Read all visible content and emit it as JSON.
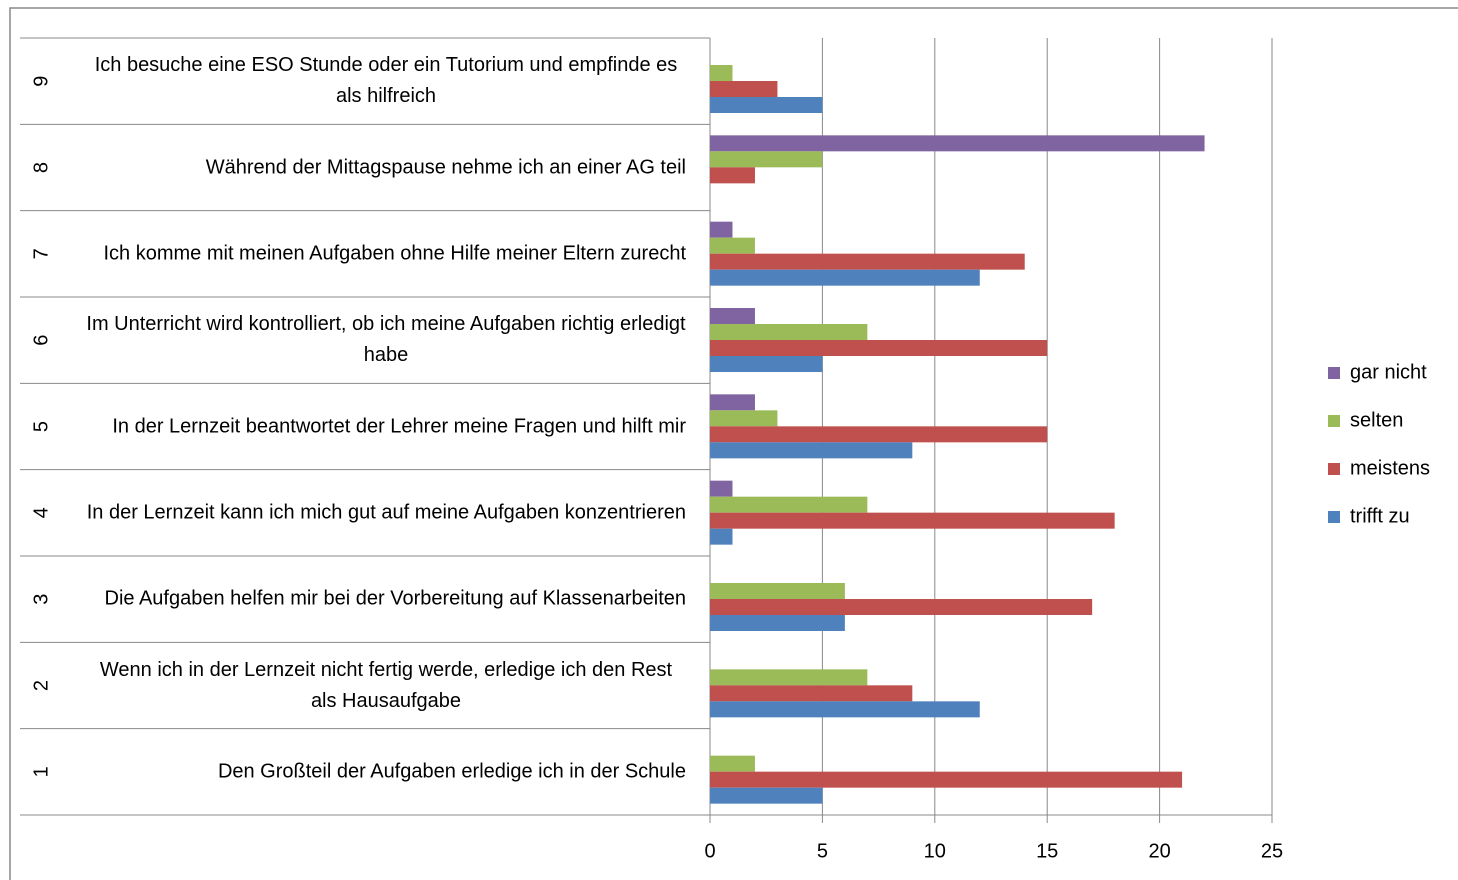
{
  "chart_data": {
    "type": "bar",
    "orientation": "horizontal",
    "category_ids": [
      1,
      2,
      3,
      4,
      5,
      6,
      7,
      8,
      9
    ],
    "categories": [
      "Den Großteil der Aufgaben erledige ich in der Schule",
      "Wenn ich in der Lernzeit nicht fertig werde, erledige ich den Rest als Hausaufgabe",
      "Die Aufgaben helfen mir bei der Vorbereitung auf Klassenarbeiten",
      "In der Lernzeit kann ich mich gut auf meine Aufgaben konzentrieren",
      "In der Lernzeit beantwortet der Lehrer meine Fragen und hilft mir",
      "Im Unterricht wird kontrolliert, ob ich meine Aufgaben richtig erledigt habe",
      "Ich komme mit meinen Aufgaben ohne Hilfe meiner Eltern zurecht",
      "Während der Mittagspause nehme ich an einer AG teil",
      "Ich besuche eine ESO Stunde oder ein Tutorium und empfinde es als hilfreich"
    ],
    "series": [
      {
        "name": "gar nicht",
        "color": "#8064a2",
        "values": [
          null,
          null,
          null,
          1,
          2,
          2,
          1,
          22,
          null
        ]
      },
      {
        "name": "selten",
        "color": "#9bbb59",
        "values": [
          2,
          7,
          6,
          7,
          3,
          7,
          2,
          5,
          1
        ]
      },
      {
        "name": "meistens",
        "color": "#c0504d",
        "values": [
          21,
          9,
          17,
          18,
          15,
          15,
          14,
          2,
          3
        ]
      },
      {
        "name": "trifft zu",
        "color": "#4f81bd",
        "values": [
          5,
          12,
          6,
          1,
          9,
          5,
          12,
          null,
          5
        ]
      }
    ],
    "xlim": [
      0,
      25
    ],
    "xticks": [
      0,
      5,
      10,
      15,
      20,
      25
    ],
    "grid": true,
    "legend": "right"
  }
}
